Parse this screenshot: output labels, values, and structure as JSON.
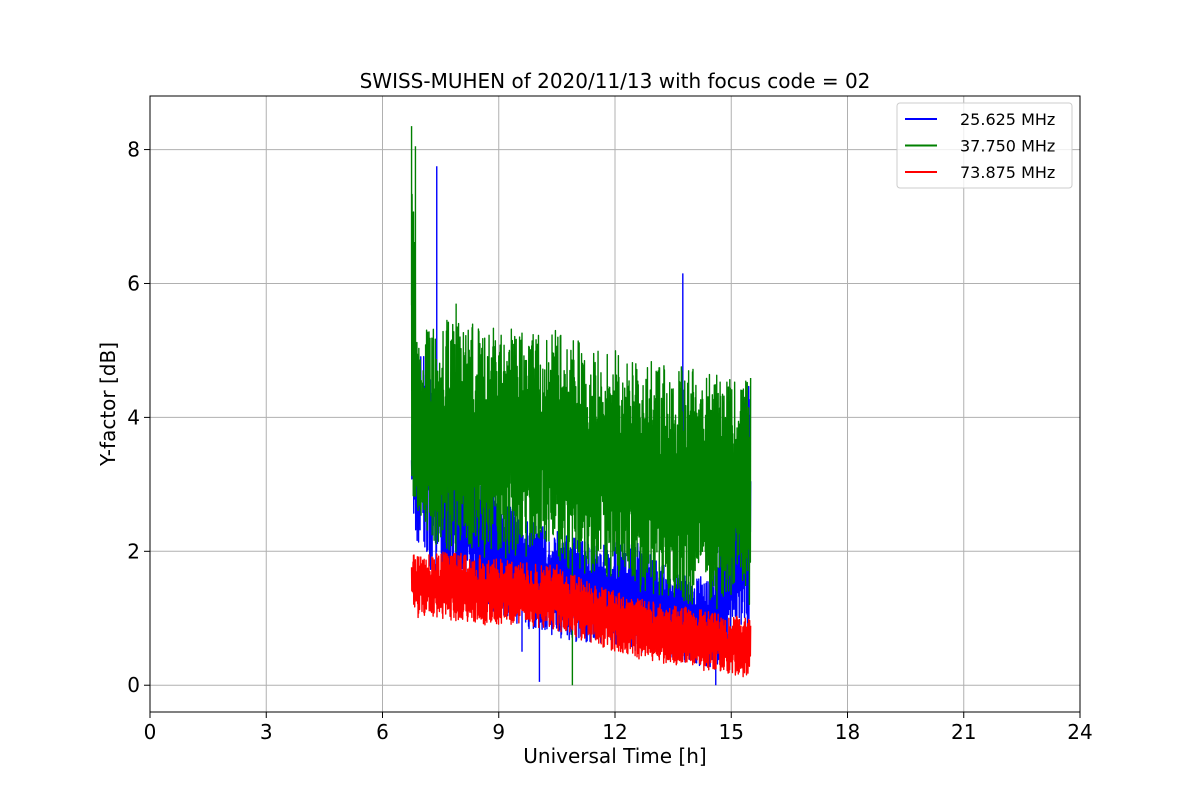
{
  "chart_data": {
    "type": "line",
    "title": "SWISS-MUHEN of 2020/11/13 with focus code = 02",
    "xlabel": "Universal Time [h]",
    "ylabel": "Y-factor [dB]",
    "xlim": [
      0,
      24
    ],
    "ylim": [
      -0.4,
      8.8
    ],
    "xticks": [
      0,
      3,
      6,
      9,
      12,
      15,
      18,
      21,
      24
    ],
    "yticks": [
      0,
      2,
      4,
      6,
      8
    ],
    "grid": true,
    "legend_position": "top-right",
    "series": [
      {
        "name": "25.625 MHz",
        "color": "#0000ff",
        "band": {
          "x": [
            6.75,
            6.9,
            7.5,
            8.5,
            9.5,
            10.5,
            11.5,
            12.5,
            13.5,
            14.5,
            15.5
          ],
          "low": [
            2.7,
            2.0,
            1.5,
            1.2,
            0.9,
            0.7,
            0.6,
            0.5,
            0.4,
            0.2,
            0.9
          ],
          "high": [
            3.9,
            5.2,
            4.3,
            3.2,
            2.6,
            2.3,
            2.1,
            2.2,
            1.7,
            1.6,
            4.7
          ]
        },
        "peaks": [
          [
            6.8,
            6.3
          ],
          [
            7.4,
            7.75
          ],
          [
            13.75,
            6.15
          ],
          [
            9.6,
            0.5
          ],
          [
            10.05,
            0.05
          ],
          [
            14.6,
            0.0
          ]
        ]
      },
      {
        "name": "37.750 MHz",
        "color": "#008000",
        "band": {
          "x": [
            6.75,
            6.9,
            7.5,
            8.5,
            9.5,
            10.5,
            11.5,
            12.5,
            13.5,
            14.5,
            15.5
          ],
          "low": [
            3.0,
            2.4,
            2.0,
            1.9,
            1.9,
            1.8,
            1.6,
            1.4,
            1.3,
            1.1,
            1.2
          ],
          "high": [
            8.35,
            5.3,
            5.5,
            5.4,
            5.3,
            5.3,
            5.1,
            4.9,
            4.8,
            4.7,
            4.6
          ]
        },
        "peaks": [
          [
            6.75,
            8.35
          ],
          [
            6.85,
            8.05
          ],
          [
            7.9,
            5.7
          ],
          [
            10.9,
            0.0
          ]
        ]
      },
      {
        "name": "73.875 MHz",
        "color": "#ff0000",
        "band": {
          "x": [
            6.75,
            7.5,
            8.5,
            9.5,
            10.5,
            11.5,
            12.5,
            13.5,
            14.5,
            15.5
          ],
          "low": [
            1.0,
            1.0,
            0.9,
            0.9,
            0.8,
            0.6,
            0.4,
            0.3,
            0.2,
            0.1
          ],
          "high": [
            1.95,
            2.0,
            1.95,
            1.85,
            1.8,
            1.5,
            1.3,
            1.2,
            1.1,
            1.0
          ]
        },
        "peaks": []
      }
    ]
  }
}
